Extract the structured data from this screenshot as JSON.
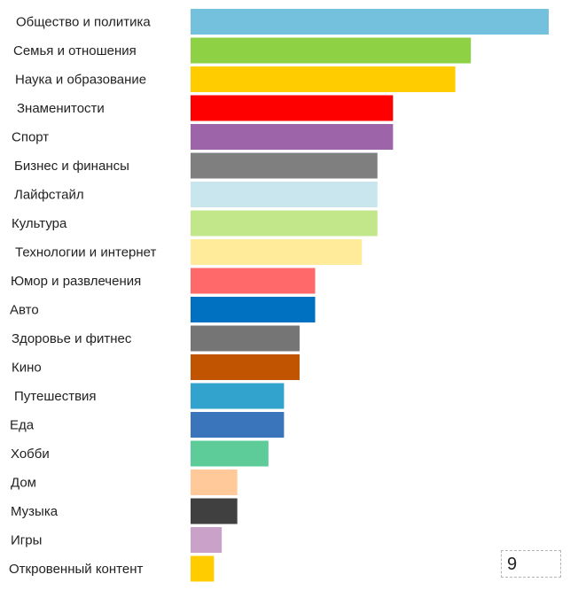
{
  "page_number": "9",
  "chart_data": {
    "type": "bar",
    "orientation": "horizontal",
    "title": "",
    "xlabel": "",
    "ylabel": "",
    "grid": false,
    "legend": "none",
    "xlim": [
      0,
      23
    ],
    "categories": [
      "Общество и политика",
      "Семья и отношения",
      "Наука и образование",
      "Знаменитости",
      "Спорт",
      "Бизнес и финансы",
      "Лайфстайл",
      "Культура",
      "Технологии и интернет",
      "Юмор и развлечения",
      "Авто",
      "Здоровье и фитнес",
      "Кино",
      "Путешествия",
      "Еда",
      "Хобби",
      "Дом",
      "Музыка",
      "Игры",
      "Откровенный контент"
    ],
    "values": [
      23,
      18,
      17,
      13,
      13,
      12,
      12,
      12,
      11,
      8,
      8,
      7,
      7,
      6,
      6,
      5,
      3,
      3,
      2,
      1.5
    ],
    "colors": [
      "#74c1dd",
      "#8ed145",
      "#ffcc00",
      "#ff0000",
      "#9e64aa",
      "#7f7f7f",
      "#c9e6ef",
      "#c2e78b",
      "#ffeb99",
      "#ff6969",
      "#0070c0",
      "#757575",
      "#c05400",
      "#31a3cc",
      "#3a74ba",
      "#5dcc98",
      "#ffc999",
      "#404040",
      "#c9a1c9",
      "#ffcc00"
    ]
  }
}
